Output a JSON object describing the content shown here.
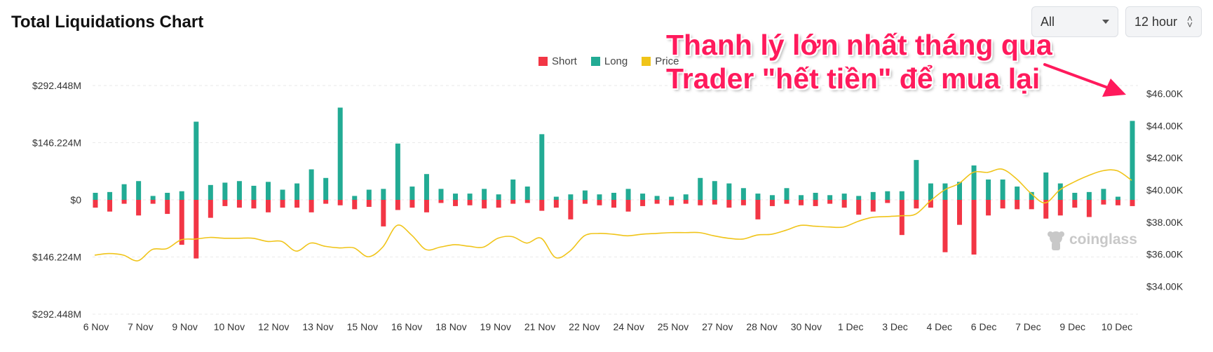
{
  "header": {
    "title": "Total Liquidations Chart"
  },
  "controls": {
    "symbol_select": "All",
    "period_select": "12 hour"
  },
  "annotation": {
    "line1": "Thanh lý lớn nhất tháng qua",
    "line2": "Trader \"hết tiền\" để mua lại"
  },
  "watermark": "coinglass",
  "colors": {
    "short": "#f23645",
    "long": "#22ab94",
    "price": "#f0c419",
    "annotation": "#ff1a5c"
  },
  "chart_data": {
    "type": "bar",
    "title": "Total Liquidations Chart",
    "legend": [
      "Short",
      "Long",
      "Price"
    ],
    "legend_position": "top-center",
    "y_left": {
      "ticks": [
        "$292.448M",
        "$146.224M",
        "$0",
        "$146.224M",
        "$292.448M"
      ],
      "ylim": [
        -292.448,
        292.448
      ],
      "unit": "M USD"
    },
    "y_right": {
      "ticks": [
        "$46.00K",
        "$44.00K",
        "$42.00K",
        "$40.00K",
        "$38.00K",
        "$36.00K",
        "$34.00K"
      ],
      "ylim": [
        33500,
        46500
      ],
      "unit": "USD"
    },
    "x_tick_labels": [
      "6 Nov",
      "7 Nov",
      "9 Nov",
      "10 Nov",
      "12 Nov",
      "13 Nov",
      "15 Nov",
      "16 Nov",
      "18 Nov",
      "19 Nov",
      "21 Nov",
      "22 Nov",
      "24 Nov",
      "25 Nov",
      "27 Nov",
      "28 Nov",
      "30 Nov",
      "1 Dec",
      "3 Dec",
      "4 Dec",
      "6 Dec",
      "7 Dec",
      "9 Dec",
      "10 Dec"
    ],
    "grid": true,
    "series": [
      {
        "name": "Long",
        "values": [
          18,
          20,
          40,
          48,
          10,
          18,
          22,
          200,
          38,
          44,
          48,
          36,
          46,
          26,
          42,
          78,
          56,
          236,
          10,
          26,
          28,
          144,
          34,
          66,
          28,
          16,
          16,
          28,
          14,
          52,
          34,
          168,
          8,
          14,
          24,
          14,
          18,
          28,
          16,
          10,
          8,
          14,
          56,
          48,
          42,
          30,
          16,
          12,
          30,
          12,
          18,
          12,
          16,
          10,
          20,
          22,
          22,
          102,
          42,
          42,
          46,
          88,
          52,
          52,
          34,
          20,
          70,
          42,
          18,
          20,
          28,
          8,
          202
        ]
      },
      {
        "name": "Short",
        "values": [
          -20,
          -30,
          -10,
          -40,
          -10,
          -36,
          -115,
          -150,
          -46,
          -16,
          -20,
          -22,
          -32,
          -20,
          -20,
          -32,
          -10,
          -14,
          -24,
          -18,
          -68,
          -26,
          -20,
          -32,
          -8,
          -16,
          -14,
          -22,
          -20,
          -10,
          -8,
          -28,
          -20,
          -50,
          -10,
          -14,
          -20,
          -30,
          -16,
          -10,
          -14,
          -10,
          -14,
          -12,
          -20,
          -14,
          -50,
          -16,
          -10,
          -14,
          -16,
          -10,
          -20,
          -38,
          -30,
          -8,
          -90,
          -22,
          -20,
          -134,
          -64,
          -140,
          -40,
          -22,
          -24,
          -24,
          -48,
          -40,
          -20,
          -44,
          -12,
          -14,
          -16
        ]
      },
      {
        "name": "Price",
        "values": [
          35950,
          36050,
          35950,
          35600,
          36300,
          36350,
          36900,
          36950,
          37050,
          37000,
          37000,
          37000,
          36800,
          36800,
          36200,
          36700,
          36500,
          36400,
          36400,
          35850,
          36450,
          37800,
          37200,
          36300,
          36450,
          36600,
          36500,
          36450,
          37000,
          37100,
          36700,
          37000,
          35800,
          36200,
          37150,
          37300,
          37250,
          37150,
          37250,
          37300,
          37350,
          37350,
          37350,
          37150,
          37000,
          36950,
          37200,
          37250,
          37500,
          37800,
          37750,
          37700,
          37700,
          38050,
          38300,
          38350,
          38400,
          38500,
          39300,
          40000,
          40400,
          41100,
          41100,
          41300,
          40700,
          39800,
          39200,
          40000,
          40500,
          40900,
          41200,
          41200,
          40600
        ]
      }
    ]
  }
}
